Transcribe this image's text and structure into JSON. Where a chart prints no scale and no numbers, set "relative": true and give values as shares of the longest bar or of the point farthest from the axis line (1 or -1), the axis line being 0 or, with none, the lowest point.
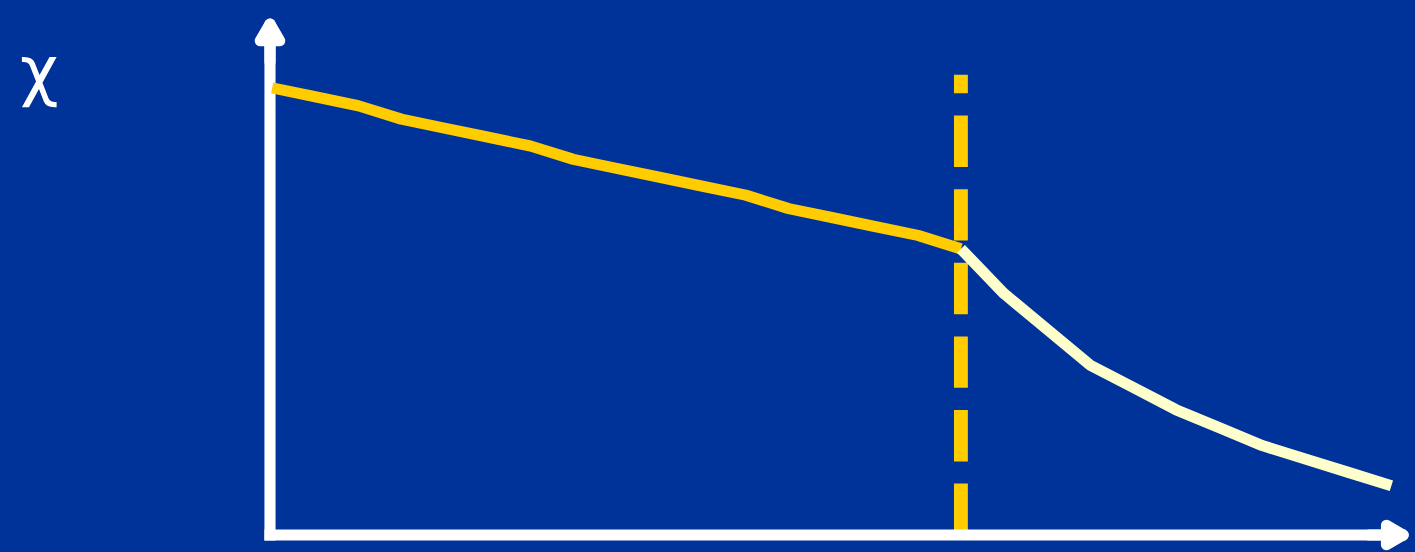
{
  "chart_data": {
    "type": "line",
    "relative": true,
    "ylabel": "χ",
    "categories": [
      null,
      null,
      null,
      null,
      null,
      null,
      null,
      null,
      null,
      null,
      null,
      null,
      null,
      null,
      null,
      null,
      null,
      null,
      null,
      null,
      null,
      null,
      null,
      null,
      null,
      null,
      null
    ],
    "series": [
      {
        "color": "#ffcc00",
        "values": [
          1.0,
          0.98,
          0.96,
          0.93,
          0.91,
          0.89,
          0.87,
          0.84,
          0.82,
          0.8,
          0.78,
          0.76,
          0.73,
          0.71,
          0.69,
          0.67,
          0.64,
          null,
          null,
          null,
          null,
          null,
          null,
          null,
          null,
          null,
          null
        ]
      },
      {
        "color": "#ffffcc",
        "values": [
          null,
          null,
          null,
          null,
          null,
          null,
          null,
          null,
          null,
          null,
          null,
          null,
          null,
          null,
          null,
          null,
          0.64,
          0.54,
          0.46,
          0.38,
          0.33,
          0.28,
          0.24,
          0.2,
          0.17,
          0.14,
          0.11
        ]
      }
    ],
    "grid": false,
    "legend": false,
    "marker": "none",
    "line_style": "solid"
  }
}
